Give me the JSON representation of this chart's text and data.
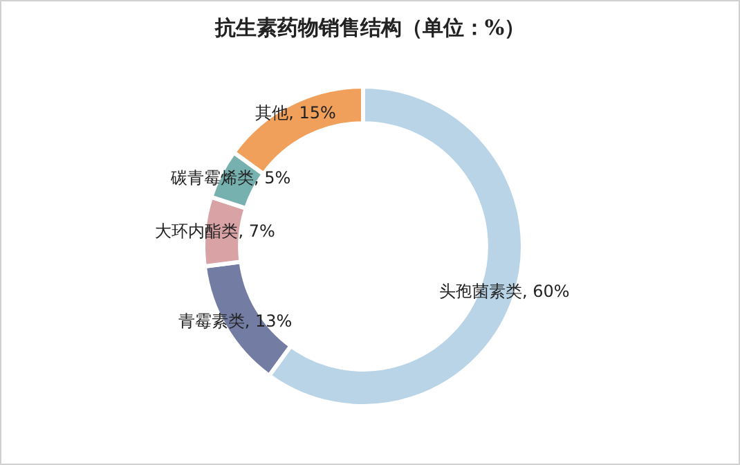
{
  "chart_data": {
    "type": "donut",
    "title": "抗生素药物销售结构（单位：%）",
    "categories": [
      "头孢菌素类",
      "青霉素类",
      "大环内酯类",
      "碳青霉烯类",
      "其他"
    ],
    "values": [
      60,
      13,
      7,
      5,
      15
    ],
    "colors": [
      "#b8d4e6",
      "#737ca3",
      "#d9a3a6",
      "#76b1b0",
      "#f0a05a"
    ],
    "value_labels": [
      "60%",
      "13%",
      "7%",
      "5%",
      "15%"
    ],
    "legend": false
  }
}
